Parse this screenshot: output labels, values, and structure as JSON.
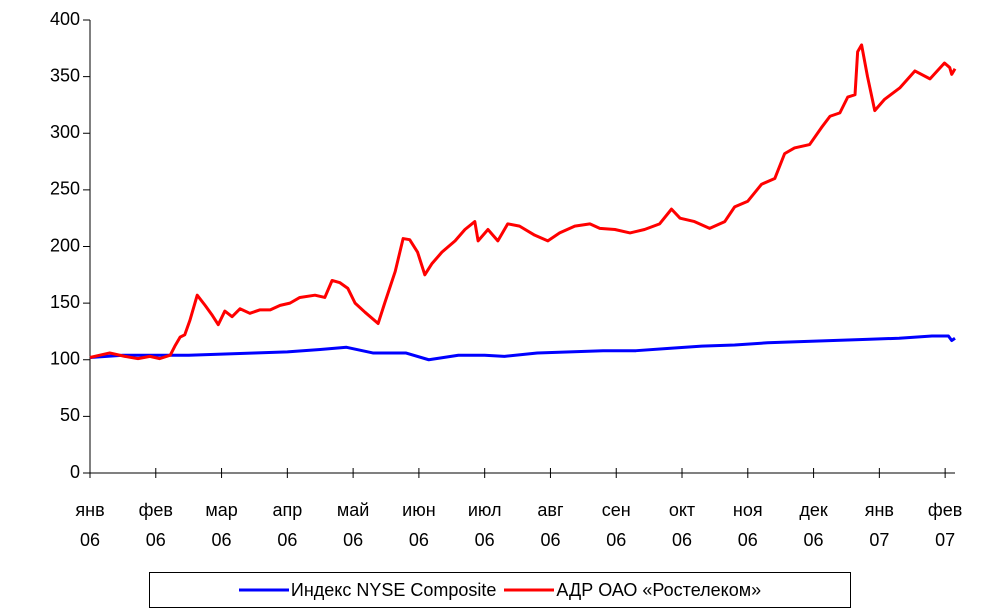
{
  "chart_data": {
    "type": "line",
    "x": [],
    "xlim": [
      0,
      13.15
    ],
    "xticks": [
      {
        "value": 0,
        "label": "янв 06"
      },
      {
        "value": 1,
        "label": "фев 06"
      },
      {
        "value": 2,
        "label": "мар 06"
      },
      {
        "value": 3,
        "label": "апр 06"
      },
      {
        "value": 4,
        "label": "май 06"
      },
      {
        "value": 5,
        "label": "июн 06"
      },
      {
        "value": 6,
        "label": "июл 06"
      },
      {
        "value": 7,
        "label": "авг 06"
      },
      {
        "value": 8,
        "label": "сен 06"
      },
      {
        "value": 9,
        "label": "окт 06"
      },
      {
        "value": 10,
        "label": "ноя 06"
      },
      {
        "value": 11,
        "label": "дек 06"
      },
      {
        "value": 12,
        "label": "янв 07"
      },
      {
        "value": 13,
        "label": "фев 07"
      }
    ],
    "ylim": [
      0,
      400
    ],
    "yticks": [
      0,
      50,
      100,
      150,
      200,
      250,
      300,
      350,
      400
    ],
    "legend": "bottom",
    "series": [
      {
        "name": "Индекс NYSE Composite",
        "color": "#0000ff",
        "x": [
          0,
          0.5,
          1,
          1.5,
          2,
          2.5,
          3,
          3.5,
          3.9,
          4.3,
          4.8,
          5.15,
          5.6,
          6.0,
          6.3,
          6.8,
          7.3,
          7.8,
          8.3,
          8.8,
          9.3,
          9.8,
          10.3,
          10.8,
          11.3,
          11.8,
          12.3,
          12.8,
          13.05,
          13.1,
          13.15
        ],
        "values": [
          102,
          104,
          104,
          104,
          105,
          106,
          107,
          109,
          111,
          106,
          106,
          100,
          104,
          104,
          103,
          106,
          107,
          108,
          108,
          110,
          112,
          113,
          115,
          116,
          117,
          118,
          119,
          121,
          121,
          117,
          119
        ]
      },
      {
        "name": "АДР ОАО «Ростелеком»",
        "color": "#ff0000",
        "x": [
          0,
          0.15,
          0.3,
          0.53,
          0.73,
          0.91,
          1.06,
          1.22,
          1.29,
          1.37,
          1.44,
          1.52,
          1.63,
          1.75,
          1.85,
          1.95,
          2.05,
          2.16,
          2.28,
          2.43,
          2.58,
          2.74,
          2.89,
          3.04,
          3.19,
          3.42,
          3.57,
          3.68,
          3.8,
          3.92,
          4.03,
          4.18,
          4.38,
          4.48,
          4.64,
          4.76,
          4.86,
          4.98,
          5.09,
          5.2,
          5.35,
          5.55,
          5.7,
          5.85,
          5.9,
          6.05,
          6.2,
          6.35,
          6.53,
          6.76,
          6.96,
          7.14,
          7.37,
          7.6,
          7.75,
          7.98,
          8.21,
          8.43,
          8.66,
          8.84,
          8.97,
          9.19,
          9.42,
          9.65,
          9.8,
          10.0,
          10.21,
          10.41,
          10.56,
          10.71,
          10.94,
          11.12,
          11.25,
          11.4,
          11.52,
          11.63,
          11.67,
          11.73,
          11.82,
          11.93,
          12.08,
          12.31,
          12.54,
          12.77,
          12.99,
          13.07,
          13.1,
          13.15
        ],
        "values": [
          102,
          104,
          106,
          103,
          101,
          103,
          101,
          104,
          112,
          120,
          122,
          135,
          157,
          148,
          140,
          131,
          143,
          138,
          145,
          141,
          144,
          144,
          148,
          150,
          155,
          157,
          155,
          170,
          168,
          163,
          150,
          142,
          132,
          150,
          178,
          207,
          206,
          195,
          175,
          185,
          195,
          205,
          215,
          222,
          205,
          215,
          205,
          220,
          218,
          210,
          205,
          212,
          218,
          220,
          216,
          215,
          212,
          215,
          220,
          233,
          225,
          222,
          216,
          222,
          235,
          240,
          255,
          260,
          282,
          287,
          290,
          305,
          315,
          318,
          332,
          334,
          372,
          378,
          350,
          320,
          330,
          340,
          355,
          348,
          362,
          358,
          352,
          357
        ]
      }
    ]
  }
}
